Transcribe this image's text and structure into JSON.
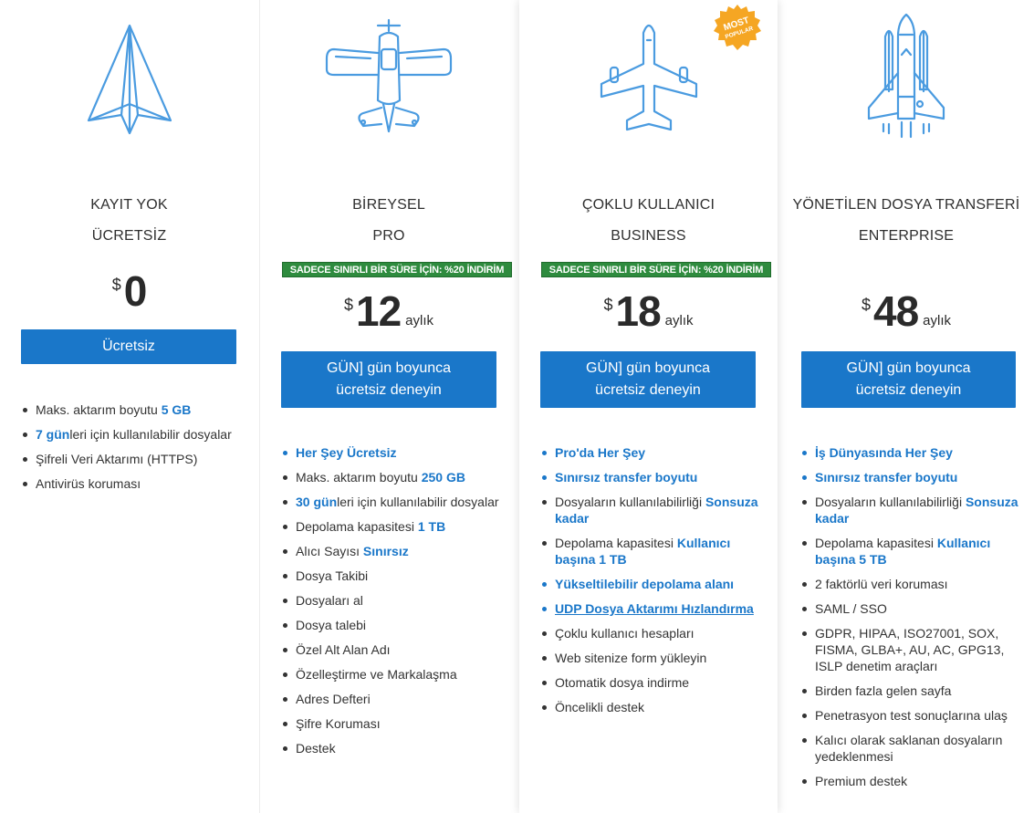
{
  "colors": {
    "accent": "#1a77c9",
    "promo": "#2e8b3e",
    "popular_badge": "#f5a623",
    "icon_stroke": "#4a9be0"
  },
  "plans": [
    {
      "icon": "paper-plane-icon",
      "title": "KAYIT YOK",
      "subtitle": "ÜCRETSİZ",
      "currency": "$",
      "price": "0",
      "period": "",
      "button": "Ücretsiz",
      "features": [
        {
          "a": "Maks. aktarım boyutu ",
          "b": "5 GB",
          "c": ""
        },
        {
          "a": "",
          "b": "7 gün",
          "c": "leri için kullanılabilir dosyalar"
        },
        {
          "a": "Şifreli Veri Aktarımı (HTTPS)",
          "b": "",
          "c": ""
        },
        {
          "a": "Antivirüs koruması",
          "b": "",
          "c": ""
        }
      ]
    },
    {
      "icon": "propeller-plane-icon",
      "title": "BİREYSEL",
      "subtitle": "PRO",
      "promo": "SADECE SINIRLI BİR SÜRE İÇİN: %20 İNDİRİM",
      "currency": "$",
      "price": "12",
      "period": "aylık",
      "button_line1": "GÜN] gün boyunca",
      "button_line2": "ücretsiz deneyin",
      "features": [
        {
          "a": "Her Şey Ücretsiz",
          "b": "",
          "c": ""
        },
        {
          "a": "Maks. aktarım boyutu ",
          "b": "250 GB",
          "c": ""
        },
        {
          "a": "",
          "b": "30 gün",
          "c": "leri için kullanılabilir dosyalar"
        },
        {
          "a": "Depolama kapasitesi ",
          "b": "1 TB",
          "c": ""
        },
        {
          "a": "Alıcı Sayısı ",
          "b": "Sınırsız",
          "c": ""
        },
        {
          "a": "Dosya Takibi",
          "b": "",
          "c": ""
        },
        {
          "a": "Dosyaları al",
          "b": "",
          "c": ""
        },
        {
          "a": "Dosya talebi",
          "b": "",
          "c": ""
        },
        {
          "a": "Özel Alt Alan Adı",
          "b": "",
          "c": ""
        },
        {
          "a": "Özelleştirme ve Markalaşma",
          "b": "",
          "c": ""
        },
        {
          "a": "Adres Defteri",
          "b": "",
          "c": ""
        },
        {
          "a": "Şifre Koruması",
          "b": "",
          "c": ""
        },
        {
          "a": "Destek",
          "b": "",
          "c": ""
        }
      ]
    },
    {
      "icon": "jet-plane-icon",
      "badge": [
        "MOST",
        "POPULAR"
      ],
      "title": "ÇOKLU KULLANICI",
      "subtitle": "BUSINESS",
      "promo": "SADECE SINIRLI BİR SÜRE İÇİN: %20 İNDİRİM",
      "currency": "$",
      "price": "18",
      "period": "aylık",
      "button_line1": "GÜN] gün boyunca",
      "button_line2": "ücretsiz deneyin",
      "features": [
        {
          "a": "Pro'da Her Şey",
          "b": "",
          "c": ""
        },
        {
          "a": "Sınırsız transfer boyutu",
          "b": "",
          "c": ""
        },
        {
          "a": "Dosyaların kullanılabilirliği ",
          "b": "Sonsuza kadar",
          "c": ""
        },
        {
          "a": "Depolama kapasitesi ",
          "b": "Kullanıcı başına 1 TB",
          "c": ""
        },
        {
          "a": "Yükseltilebilir depolama alanı",
          "b": "",
          "c": ""
        },
        {
          "a": "UDP Dosya Aktarımı Hızlandırma",
          "b": "",
          "c": ""
        },
        {
          "a": "Çoklu kullanıcı hesapları",
          "b": "",
          "c": ""
        },
        {
          "a": "Web sitenize form yükleyin",
          "b": "",
          "c": ""
        },
        {
          "a": "Otomatik dosya indirme",
          "b": "",
          "c": ""
        },
        {
          "a": "Öncelikli destek",
          "b": "",
          "c": ""
        }
      ]
    },
    {
      "icon": "space-shuttle-icon",
      "title": "YÖNETİLEN DOSYA TRANSFERİ",
      "subtitle": "ENTERPRISE",
      "currency": "$",
      "price": "48",
      "period": "aylık",
      "button_line1": "GÜN] gün boyunca",
      "button_line2": "ücretsiz deneyin",
      "features": [
        {
          "a": "İş Dünyasında Her Şey",
          "b": "",
          "c": ""
        },
        {
          "a": "Sınırsız transfer boyutu",
          "b": "",
          "c": ""
        },
        {
          "a": "Dosyaların kullanılabilirliği ",
          "b": "Sonsuza kadar",
          "c": ""
        },
        {
          "a": "Depolama kapasitesi ",
          "b": "Kullanıcı başına 5 TB",
          "c": ""
        },
        {
          "a": "2 faktörlü veri koruması",
          "b": "",
          "c": ""
        },
        {
          "a": "SAML / SSO",
          "b": "",
          "c": ""
        },
        {
          "a": "GDPR, HIPAA, ISO27001, SOX, FISMA, GLBA+, AU, AC, GPG13, ISLP denetim araçları",
          "b": "",
          "c": ""
        },
        {
          "a": "Birden fazla gelen sayfa",
          "b": "",
          "c": ""
        },
        {
          "a": "Penetrasyon test sonuçlarına ulaş",
          "b": "",
          "c": ""
        },
        {
          "a": "Kalıcı olarak saklanan dosyaların yedeklenmesi",
          "b": "",
          "c": ""
        },
        {
          "a": "Premium destek",
          "b": "",
          "c": ""
        }
      ]
    }
  ]
}
